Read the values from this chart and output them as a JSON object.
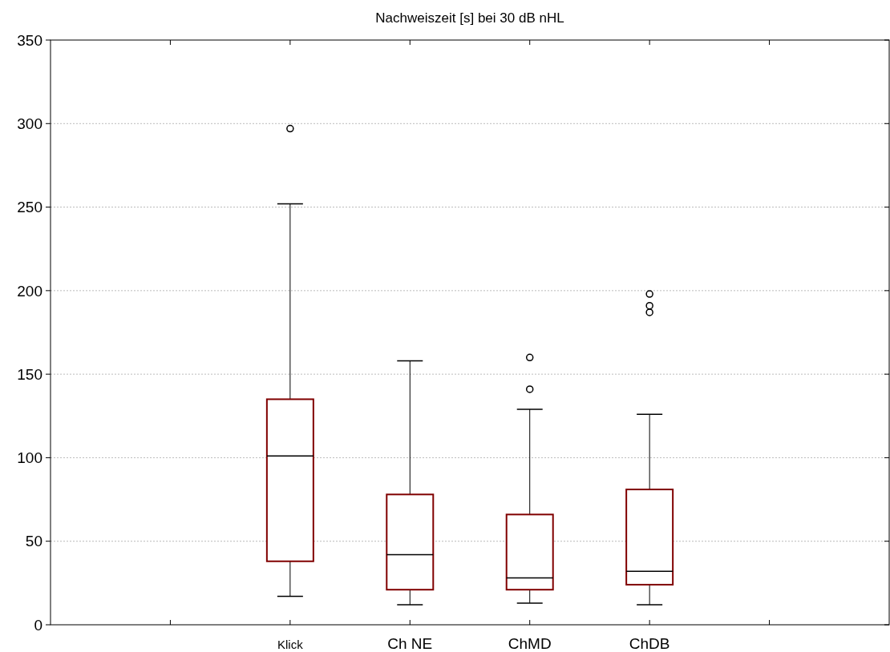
{
  "chart_data": {
    "type": "box",
    "title": "Nachweiszeit [s] bei 30 dB nHL",
    "categories": [
      null,
      "Klick",
      "Ch NE",
      "ChMD",
      "ChDB",
      null
    ],
    "boxes": [
      null,
      {
        "low": 17,
        "q1": 38,
        "median": 101,
        "q3": 135,
        "high": 252,
        "outliers": [
          297
        ]
      },
      {
        "low": 12,
        "q1": 21,
        "median": 42,
        "q3": 78,
        "high": 158
      },
      {
        "low": 13,
        "q1": 21,
        "median": 28,
        "q3": 66,
        "high": 129,
        "outliers": [
          141,
          160
        ]
      },
      {
        "low": 12,
        "q1": 24,
        "median": 32,
        "q3": 81,
        "high": 126,
        "outliers": [
          187,
          191,
          198
        ]
      },
      null
    ],
    "color": "#800000",
    "ylim": [
      0,
      350
    ],
    "yticks": [
      0,
      50,
      100,
      150,
      200,
      250,
      300,
      350
    ],
    "grid": "y"
  }
}
